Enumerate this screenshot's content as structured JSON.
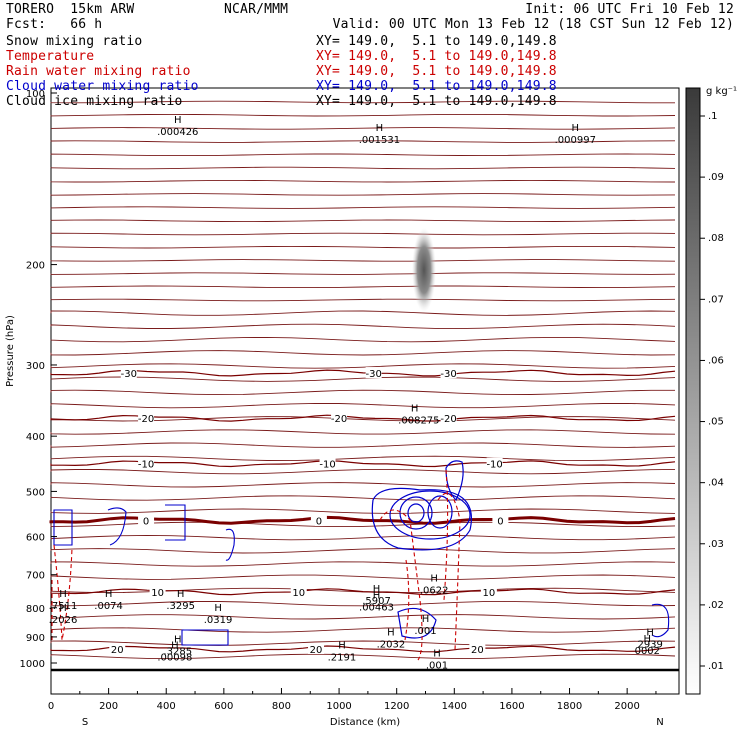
{
  "header": {
    "model": "TORERO  15km ARW",
    "center": "NCAR/MMM",
    "init": "Init: 06 UTC Fri 10 Feb 12",
    "fcst": "Fcst:   66 h",
    "valid": "Valid: 00 UTC Mon 13 Feb 12 (18 CST Sun 12 Feb 12)",
    "fields": [
      {
        "name": "Snow mixing ratio",
        "xy": "XY= 149.0,  5.1 to 149.0,149.8",
        "color": "#000000"
      },
      {
        "name": "Temperature",
        "xy": "XY= 149.0,  5.1 to 149.0,149.8",
        "color": "#cc0000"
      },
      {
        "name": "Rain water mixing ratio",
        "xy": "XY= 149.0,  5.1 to 149.0,149.8",
        "color": "#cc0000"
      },
      {
        "name": "Cloud water mixing ratio",
        "xy": "XY= 149.0,  5.1 to 149.0,149.8",
        "color": "#0000cc"
      },
      {
        "name": "Cloud ice mixing ratio",
        "xy": "XY= 149.0,  5.1 to 149.0,149.8",
        "color": "#000000"
      }
    ]
  },
  "chart_data": {
    "type": "cross-section",
    "xlabel": "Distance (km)",
    "ylabel": "Pressure (hPa)",
    "xlim": [
      0,
      2180
    ],
    "ylim": [
      1050,
      100
    ],
    "y_scale": "log",
    "x_ticks": [
      0,
      200,
      400,
      600,
      800,
      1000,
      1200,
      1400,
      1600,
      1800,
      2000
    ],
    "y_ticks": [
      100,
      200,
      300,
      400,
      500,
      600,
      700,
      800,
      900,
      1000
    ],
    "x_end_labels": {
      "left": "S",
      "right": "N"
    },
    "colorbar": {
      "unit": "g kg⁻¹",
      "ticks": [
        ".01",
        ".02",
        ".03",
        ".04",
        ".05",
        ".06",
        ".07",
        ".08",
        ".09",
        ".1"
      ]
    },
    "temperature_isotherms": [
      {
        "value": "-30",
        "pressure": 310,
        "labels_x": [
          270,
          1120,
          1380
        ]
      },
      {
        "value": "-20",
        "pressure": 372,
        "labels_x": [
          330,
          1000,
          1380
        ]
      },
      {
        "value": "-10",
        "pressure": 447,
        "labels_x": [
          330,
          960,
          1540
        ]
      },
      {
        "value": "0",
        "pressure": 562,
        "labels_x": [
          330,
          930,
          1560
        ],
        "bold": true
      },
      {
        "value": "10",
        "pressure": 750,
        "labels_x": [
          370,
          860,
          1520
        ]
      },
      {
        "value": "20",
        "pressure": 945,
        "labels_x": [
          230,
          920,
          1480
        ]
      }
    ],
    "snow_max": {
      "value": ".008275",
      "x": 1270,
      "pressure": 371
    },
    "maxima_labels": [
      {
        "text": ".000426",
        "x": 440,
        "pressure": 118,
        "color": "#000000"
      },
      {
        "text": ".001531",
        "x": 1140,
        "pressure": 122,
        "color": "#000000"
      },
      {
        "text": ".000997",
        "x": 1820,
        "pressure": 122,
        "color": "#000000"
      },
      {
        "text": ".7511",
        "x": 0,
        "pressure": 800,
        "color": "#0000cc"
      },
      {
        "text": ".2026",
        "x": 0,
        "pressure": 848,
        "color": "#cc0000"
      },
      {
        "text": ".0074",
        "x": 200,
        "pressure": 800,
        "color": "#cc0000"
      },
      {
        "text": ".3295",
        "x": 450,
        "pressure": 800,
        "color": "#0000cc"
      },
      {
        "text": ".0319",
        "x": 580,
        "pressure": 848,
        "color": "#0000cc"
      },
      {
        "text": ".5907",
        "x": 1130,
        "pressure": 785,
        "color": "#0000cc"
      },
      {
        "text": ".00463",
        "x": 1130,
        "pressure": 805,
        "color": "#cc0000"
      },
      {
        "text": ".0622",
        "x": 1330,
        "pressure": 752,
        "color": "#0000cc"
      },
      {
        "text": ".001",
        "x": 1300,
        "pressure": 885,
        "color": "#cc0000"
      },
      {
        "text": ".2032",
        "x": 1180,
        "pressure": 935,
        "color": "#0000cc"
      },
      {
        "text": ".2191",
        "x": 1010,
        "pressure": 985,
        "color": "#0000cc"
      },
      {
        "text": ".3285",
        "x": 440,
        "pressure": 962,
        "color": "#0000cc"
      },
      {
        "text": ".00098",
        "x": 430,
        "pressure": 985,
        "color": "#cc0000"
      },
      {
        "text": ".001",
        "x": 1340,
        "pressure": 1018,
        "color": "#cc0000"
      },
      {
        "text": "2939",
        "x": 2080,
        "pressure": 935,
        "color": "#0000cc"
      },
      {
        "text": "0002",
        "x": 2070,
        "pressure": 960,
        "color": "#cc0000"
      }
    ]
  }
}
